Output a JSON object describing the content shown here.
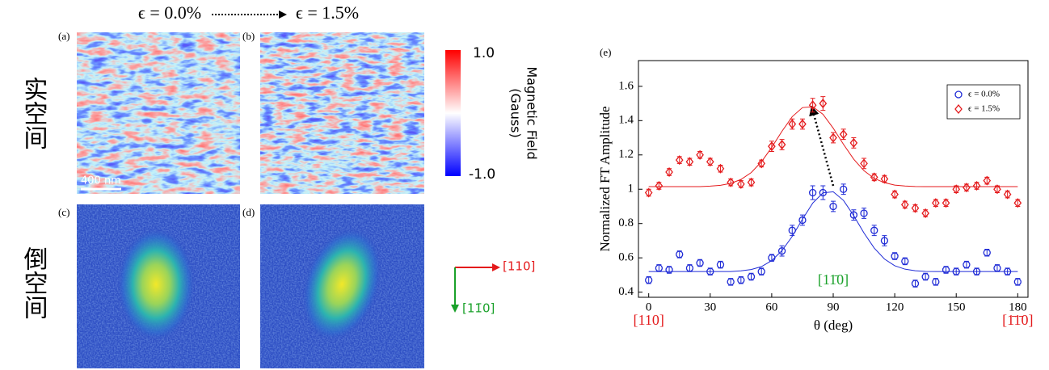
{
  "header": {
    "strain_from": "ϵ = 0.0%",
    "strain_to": "ϵ = 1.5%"
  },
  "row_labels": [
    "实空间",
    "倒空间"
  ],
  "panels": {
    "a": "(a)",
    "b": "(b)",
    "c": "(c)",
    "d": "(d)",
    "scale_bar": "400 nm"
  },
  "colorbar": {
    "max_label": "1.0",
    "min_label": "-1.0",
    "title": "Magnetic Field",
    "unit": "(Gauss)"
  },
  "directions": {
    "horizontal": "[110]",
    "vertical": "[11̄0]"
  },
  "chart_data": {
    "type": "scatter",
    "panel_label": "(e)",
    "xlabel": "θ (deg)",
    "ylabel": "Normalized FT Amplitude",
    "xlim": [
      -5,
      185
    ],
    "ylim": [
      0.37,
      1.75
    ],
    "xticks": [
      0,
      30,
      60,
      90,
      120,
      150,
      180
    ],
    "yticks": [
      0.4,
      0.6,
      0.8,
      1,
      1.2,
      1.4,
      1.6
    ],
    "legend": "upper right",
    "annotations": [
      {
        "text": "[110]",
        "x": 0,
        "color": "#e41a1c"
      },
      {
        "text": "[1̄1̄0]",
        "x": 180,
        "color": "#e41a1c"
      },
      {
        "text": "[11̄0]",
        "x": 90,
        "color": "#1aa12a"
      }
    ],
    "series": [
      {
        "name": "ϵ = 0.0%",
        "color": "#1f2bd6",
        "marker": "circle",
        "x": [
          0,
          5,
          10,
          15,
          20,
          25,
          30,
          35,
          40,
          45,
          50,
          55,
          60,
          65,
          70,
          75,
          80,
          85,
          90,
          95,
          100,
          105,
          110,
          115,
          120,
          125,
          130,
          135,
          140,
          145,
          150,
          155,
          160,
          165,
          170,
          175,
          180
        ],
        "values": [
          0.47,
          0.54,
          0.53,
          0.62,
          0.54,
          0.57,
          0.52,
          0.56,
          0.46,
          0.47,
          0.49,
          0.52,
          0.6,
          0.64,
          0.76,
          0.82,
          0.98,
          0.98,
          0.9,
          1.0,
          0.85,
          0.86,
          0.76,
          0.7,
          0.61,
          0.58,
          0.45,
          0.49,
          0.46,
          0.53,
          0.52,
          0.56,
          0.52,
          0.63,
          0.54,
          0.52,
          0.46
        ],
        "errors": [
          0.02,
          0.02,
          0.02,
          0.02,
          0.02,
          0.02,
          0.02,
          0.02,
          0.02,
          0.02,
          0.02,
          0.02,
          0.02,
          0.03,
          0.03,
          0.03,
          0.04,
          0.04,
          0.03,
          0.03,
          0.03,
          0.03,
          0.03,
          0.03,
          0.02,
          0.02,
          0.02,
          0.02,
          0.02,
          0.02,
          0.02,
          0.02,
          0.02,
          0.02,
          0.02,
          0.02,
          0.02
        ]
      },
      {
        "name": "ϵ = 1.5%",
        "color": "#e41a1c",
        "marker": "diamond",
        "x": [
          0,
          5,
          10,
          15,
          20,
          25,
          30,
          35,
          40,
          45,
          50,
          55,
          60,
          65,
          70,
          75,
          80,
          85,
          90,
          95,
          100,
          105,
          110,
          115,
          120,
          125,
          130,
          135,
          140,
          145,
          150,
          155,
          160,
          165,
          170,
          175,
          180
        ],
        "values": [
          0.98,
          1.02,
          1.1,
          1.17,
          1.16,
          1.2,
          1.16,
          1.12,
          1.04,
          1.03,
          1.04,
          1.15,
          1.25,
          1.26,
          1.38,
          1.38,
          1.49,
          1.5,
          1.3,
          1.32,
          1.27,
          1.15,
          1.07,
          1.06,
          0.97,
          0.91,
          0.89,
          0.86,
          0.92,
          0.92,
          1.0,
          1.01,
          1.02,
          1.05,
          1.0,
          0.97,
          0.92
        ],
        "errors": [
          0.02,
          0.02,
          0.02,
          0.02,
          0.02,
          0.02,
          0.02,
          0.02,
          0.02,
          0.02,
          0.02,
          0.02,
          0.03,
          0.03,
          0.03,
          0.03,
          0.04,
          0.04,
          0.03,
          0.03,
          0.03,
          0.03,
          0.02,
          0.02,
          0.02,
          0.02,
          0.02,
          0.02,
          0.02,
          0.02,
          0.02,
          0.02,
          0.02,
          0.02,
          0.02,
          0.02,
          0.02
        ]
      }
    ],
    "fits": [
      {
        "color": "#1f2bd6",
        "x": [
          0,
          5,
          10,
          15,
          20,
          25,
          30,
          35,
          40,
          45,
          50,
          55,
          60,
          65,
          70,
          75,
          80,
          85,
          90,
          95,
          100,
          105,
          110,
          115,
          120,
          125,
          130,
          135,
          140,
          145,
          150,
          155,
          160,
          165,
          170,
          175,
          180
        ],
        "values": [
          0.52,
          0.52,
          0.52,
          0.52,
          0.52,
          0.52,
          0.52,
          0.52,
          0.52,
          0.524,
          0.532,
          0.549,
          0.584,
          0.642,
          0.725,
          0.825,
          0.919,
          0.979,
          0.985,
          0.935,
          0.846,
          0.745,
          0.657,
          0.593,
          0.554,
          0.534,
          0.525,
          0.521,
          0.52,
          0.52,
          0.52,
          0.52,
          0.52,
          0.52,
          0.52,
          0.52,
          0.52
        ]
      },
      {
        "color": "#e41a1c",
        "x": [
          0,
          5,
          10,
          15,
          20,
          25,
          30,
          35,
          40,
          45,
          50,
          55,
          60,
          65,
          70,
          75,
          80,
          85,
          90,
          95,
          100,
          105,
          110,
          115,
          120,
          125,
          130,
          135,
          140,
          145,
          150,
          155,
          160,
          165,
          170,
          175,
          180
        ],
        "values": [
          1.015,
          1.015,
          1.015,
          1.015,
          1.015,
          1.015,
          1.018,
          1.023,
          1.034,
          1.057,
          1.097,
          1.16,
          1.244,
          1.338,
          1.423,
          1.476,
          1.481,
          1.437,
          1.356,
          1.262,
          1.175,
          1.108,
          1.063,
          1.038,
          1.024,
          1.019,
          1.016,
          1.015,
          1.015,
          1.015,
          1.015,
          1.015,
          1.015,
          1.015,
          1.015,
          1.015,
          1.015
        ]
      }
    ]
  }
}
